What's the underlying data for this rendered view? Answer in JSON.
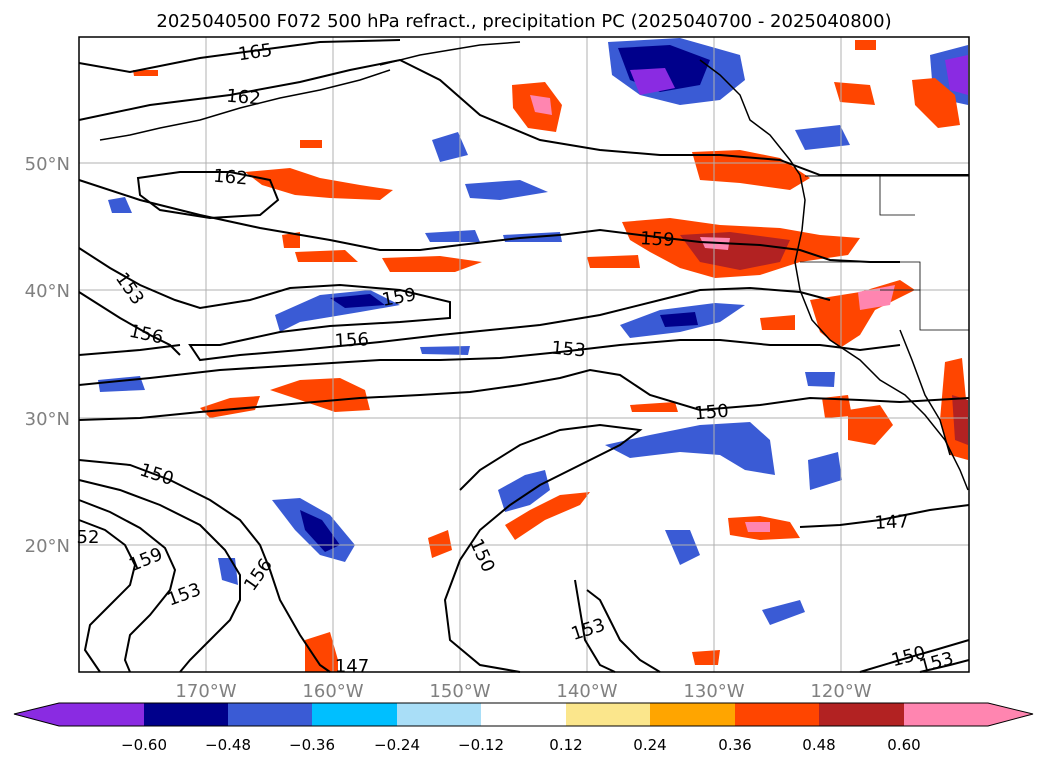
{
  "title": "2025040500 F072 500 hPa refract., precipitation PC (2025040700 - 2025040800)",
  "map": {
    "lat_labels": [
      "50°N",
      "40°N",
      "30°N",
      "20°N"
    ],
    "lon_labels": [
      "170°W",
      "160°W",
      "150°W",
      "140°W",
      "130°W",
      "120°W"
    ],
    "contour_labels": [
      "165",
      "162",
      "162",
      "153",
      "156",
      "159",
      "156",
      "159",
      "153",
      "150",
      "150",
      "159",
      "153",
      "156",
      "150",
      "147",
      "147",
      "153",
      "150",
      "153",
      "52"
    ]
  },
  "colorbar": {
    "ticks": [
      "−0.60",
      "−0.48",
      "−0.36",
      "−0.24",
      "−0.12",
      "0.12",
      "0.24",
      "0.36",
      "0.48",
      "0.60"
    ],
    "colors": [
      "#8a2be2",
      "#00008b",
      "#3a5bd5",
      "#00bfff",
      "#a9def7",
      "#ffffff",
      "#fbe68c",
      "#ffa500",
      "#ff4500",
      "#b22222",
      "#ff85b0"
    ]
  }
}
